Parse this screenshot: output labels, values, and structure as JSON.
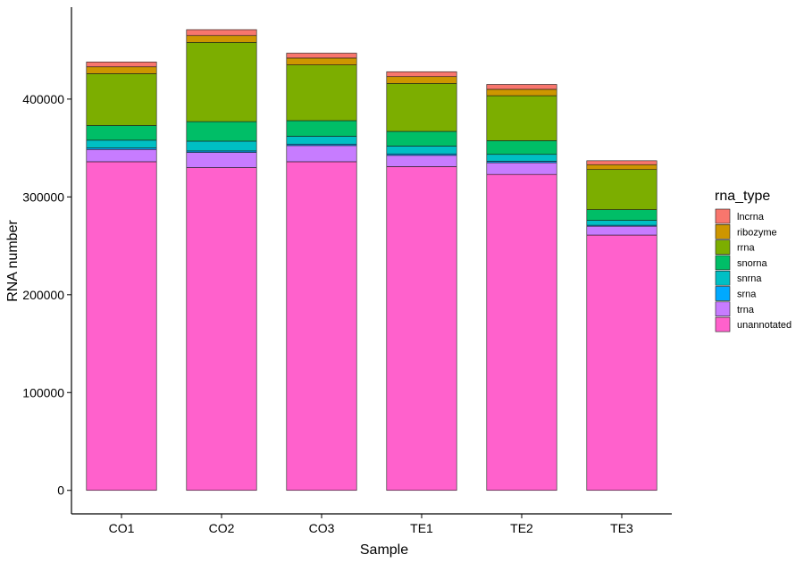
{
  "chart_data": {
    "type": "bar",
    "stacked": true,
    "title": "",
    "xlabel": "Sample",
    "ylabel": "RNA number",
    "ylim": [
      -24000,
      494000
    ],
    "yticks": [
      0,
      100000,
      200000,
      300000,
      400000
    ],
    "yticklabels": [
      "0",
      "100000",
      "200000",
      "300000",
      "400000"
    ],
    "categories": [
      "CO1",
      "CO2",
      "CO3",
      "TE1",
      "TE2",
      "TE3"
    ],
    "legend_title": "rna_type",
    "legend_position": "right",
    "series": [
      {
        "name": "unannotated",
        "color": "#FF61CC",
        "values": [
          336000,
          330000,
          336000,
          331000,
          323000,
          261000
        ]
      },
      {
        "name": "trna",
        "color": "#C77CFF",
        "values": [
          12500,
          15500,
          16500,
          11500,
          12000,
          9000
        ]
      },
      {
        "name": "srna",
        "color": "#00A9FF",
        "values": [
          1500,
          1500,
          1500,
          1500,
          1500,
          1000
        ]
      },
      {
        "name": "snrna",
        "color": "#00BFC4",
        "values": [
          8000,
          10000,
          8000,
          8000,
          7000,
          5000
        ]
      },
      {
        "name": "snorna",
        "color": "#00BE67",
        "values": [
          15000,
          20000,
          16000,
          15000,
          14000,
          11000
        ]
      },
      {
        "name": "rrna",
        "color": "#7CAE00",
        "values": [
          53000,
          81000,
          57000,
          49000,
          46000,
          41000
        ]
      },
      {
        "name": "ribozyme",
        "color": "#CD9600",
        "values": [
          7000,
          7000,
          7000,
          7000,
          6500,
          5000
        ]
      },
      {
        "name": "lncrna",
        "color": "#F8766D",
        "values": [
          5000,
          6000,
          5000,
          5000,
          5000,
          4000
        ]
      }
    ],
    "legend_order": [
      "lncrna",
      "ribozyme",
      "rrna",
      "snorna",
      "snrna",
      "srna",
      "trna",
      "unannotated"
    ],
    "grid": false
  }
}
